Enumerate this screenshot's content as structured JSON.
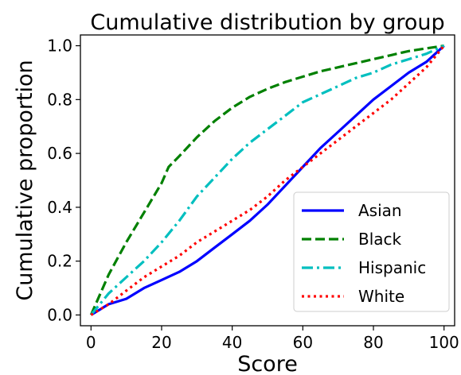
{
  "chart_data": {
    "type": "line",
    "title": "Cumulative distribution by group",
    "xlabel": "Score",
    "ylabel": "Cumulative proportion",
    "xlim": [
      -3,
      103
    ],
    "ylim": [
      -0.04,
      1.04
    ],
    "xticks": [
      0,
      20,
      40,
      60,
      80,
      100
    ],
    "yticks": [
      0.0,
      0.2,
      0.4,
      0.6,
      0.8,
      1.0
    ],
    "xtick_labels": [
      "0",
      "20",
      "40",
      "60",
      "80",
      "100"
    ],
    "ytick_labels": [
      "0.0",
      "0.2",
      "0.4",
      "0.6",
      "0.8",
      "1.0"
    ],
    "grid": false,
    "legend_position": "lower-right",
    "series": [
      {
        "name": "Asian",
        "color": "#0000ff",
        "style": "solid",
        "x": [
          0,
          5,
          10,
          15,
          20,
          25,
          30,
          35,
          40,
          45,
          50,
          55,
          60,
          65,
          70,
          75,
          80,
          85,
          90,
          95,
          100
        ],
        "y": [
          0.0,
          0.04,
          0.06,
          0.1,
          0.13,
          0.16,
          0.2,
          0.25,
          0.3,
          0.35,
          0.41,
          0.48,
          0.55,
          0.62,
          0.68,
          0.74,
          0.8,
          0.85,
          0.9,
          0.94,
          1.0
        ]
      },
      {
        "name": "Black",
        "color": "#008000",
        "style": "dashed",
        "x": [
          0,
          5,
          10,
          15,
          20,
          22,
          25,
          30,
          35,
          40,
          45,
          50,
          55,
          60,
          65,
          70,
          75,
          80,
          85,
          90,
          95,
          100
        ],
        "y": [
          0.0,
          0.15,
          0.27,
          0.38,
          0.49,
          0.55,
          0.59,
          0.66,
          0.72,
          0.77,
          0.81,
          0.84,
          0.865,
          0.885,
          0.905,
          0.92,
          0.935,
          0.95,
          0.965,
          0.98,
          0.99,
          1.0
        ]
      },
      {
        "name": "Hispanic",
        "color": "#00bfbf",
        "style": "dashdot",
        "x": [
          0,
          5,
          10,
          15,
          20,
          25,
          30,
          35,
          40,
          45,
          50,
          55,
          60,
          65,
          70,
          75,
          80,
          85,
          90,
          95,
          100
        ],
        "y": [
          0.0,
          0.08,
          0.14,
          0.2,
          0.27,
          0.35,
          0.44,
          0.51,
          0.58,
          0.64,
          0.69,
          0.74,
          0.79,
          0.82,
          0.85,
          0.88,
          0.9,
          0.93,
          0.95,
          0.97,
          1.0
        ]
      },
      {
        "name": "White",
        "color": "#ff0000",
        "style": "dotted",
        "x": [
          0,
          5,
          10,
          15,
          20,
          25,
          30,
          35,
          40,
          45,
          50,
          55,
          60,
          65,
          70,
          75,
          80,
          85,
          90,
          95,
          100
        ],
        "y": [
          0.0,
          0.04,
          0.09,
          0.14,
          0.18,
          0.22,
          0.27,
          0.31,
          0.35,
          0.39,
          0.44,
          0.5,
          0.55,
          0.6,
          0.65,
          0.7,
          0.75,
          0.8,
          0.86,
          0.92,
          1.0
        ]
      }
    ]
  }
}
